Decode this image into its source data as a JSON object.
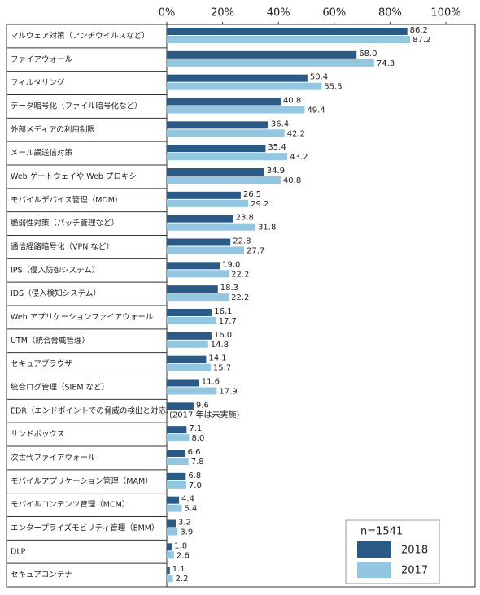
{
  "chart_data": {
    "type": "bar",
    "orientation": "horizontal",
    "categories": [
      "マルウェア対策（アンチウイルスなど）",
      "ファイアウォール",
      "フィルタリング",
      "データ暗号化（ファイル暗号化など）",
      "外部メディアの利用制限",
      "メール誤送信対策",
      "Web ゲートウェイや Web プロキシ",
      "モバイルデバイス管理（MDM）",
      "脆弱性対策（パッチ管理など）",
      "通信経路暗号化（VPN など）",
      "IPS（侵入防御システム）",
      "IDS（侵入検知システム）",
      "Web アプリケーションファイアウォール",
      "UTM（統合脅威管理）",
      "セキュアブラウザ",
      "統合ログ管理（SIEM など）",
      "EDR（エンドポイントでの脅威の検出と対応）",
      "サンドボックス",
      "次世代ファイアウォール",
      "モバイルアプリケーション管理（MAM）",
      "モバイルコンテンツ管理（MCM）",
      "エンタープライズモビリティ管理（EMM）",
      "DLP",
      "セキュアコンテナ"
    ],
    "series": [
      {
        "name": "2018",
        "color": "#2b5a87",
        "values": [
          86.2,
          68.0,
          50.4,
          40.8,
          36.4,
          35.4,
          34.9,
          26.5,
          23.8,
          22.8,
          19.0,
          18.3,
          16.1,
          16.0,
          14.1,
          11.6,
          9.6,
          7.1,
          6.6,
          6.8,
          4.4,
          3.2,
          1.8,
          1.1
        ],
        "value_labels": [
          "86.2",
          "68.0",
          "50.4",
          "40.8",
          "36.4",
          "35.4",
          "34.9",
          "26.5",
          "23.8",
          "22.8",
          "19.0",
          "18.3",
          "16.1",
          "16.0",
          "14.1",
          "11.6",
          "9.6",
          "7.1",
          "6.6",
          "6.8",
          "4.4",
          "3.2",
          "1.8",
          "1.1"
        ]
      },
      {
        "name": "2017",
        "color": "#93c6e1",
        "values": [
          87.2,
          74.3,
          55.5,
          49.4,
          42.2,
          43.2,
          40.8,
          29.2,
          31.8,
          27.7,
          22.2,
          22.2,
          17.7,
          14.8,
          15.7,
          17.9,
          null,
          8.0,
          7.8,
          7.0,
          5.4,
          3.9,
          2.6,
          2.2
        ],
        "value_labels": [
          "87.2",
          "74.3",
          "55.5",
          "49.4",
          "42.2",
          "43.2",
          "40.8",
          "29.2",
          "31.8",
          "27.7",
          "22.2",
          "22.2",
          "17.7",
          "14.8",
          "15.7",
          "17.9",
          null,
          "8.0",
          "7.8",
          "7.0",
          "5.4",
          "3.9",
          "2.6",
          "2.2"
        ]
      }
    ],
    "annotation": "(2017 年は未実施)",
    "note": "n=1541",
    "xlim": [
      0,
      100
    ],
    "xticks": [
      {
        "value": 0,
        "label": "0%"
      },
      {
        "value": 20,
        "label": "20%"
      },
      {
        "value": 40,
        "label": "40%"
      },
      {
        "value": 60,
        "label": "60%"
      },
      {
        "value": 80,
        "label": "80%"
      },
      {
        "value": 100,
        "label": "100%"
      }
    ],
    "legend_position": "bottom-right"
  }
}
